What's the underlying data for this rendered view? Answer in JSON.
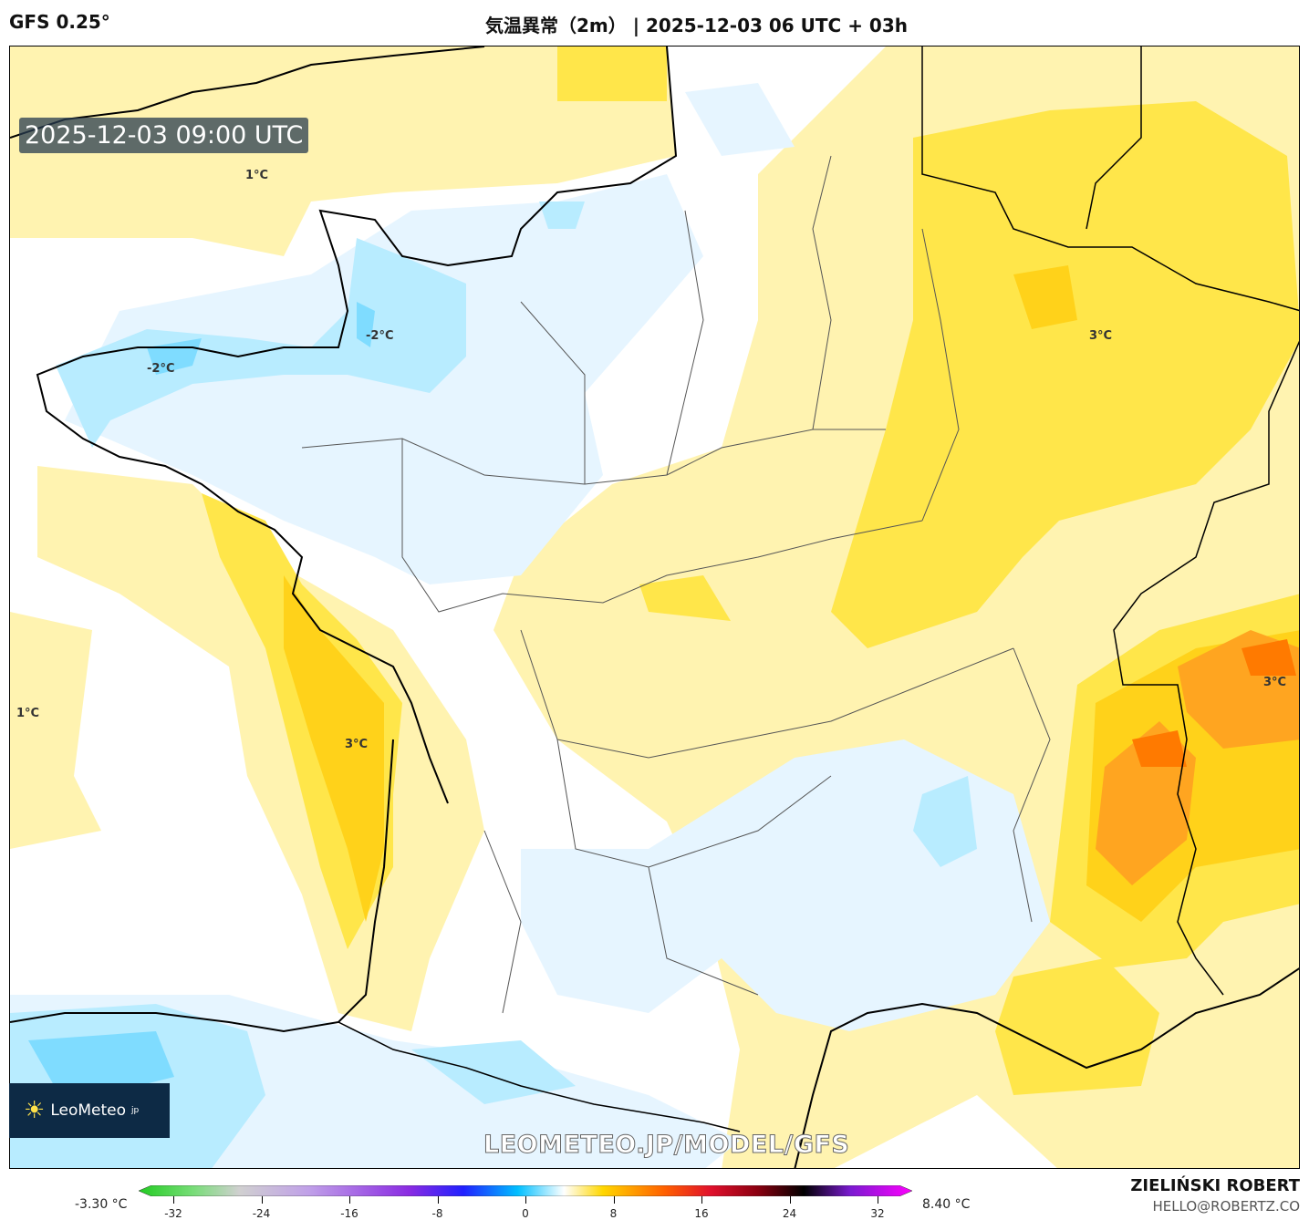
{
  "header": {
    "model": "GFS 0.25°",
    "title": "気温異常（2m） | 2025-12-03 06 UTC + 03h"
  },
  "map": {
    "valid_time": "2025-12-03 09:00 UTC",
    "contour_labels": [
      {
        "text": "1°C"
      },
      {
        "text": "1°C"
      },
      {
        "text": "-2°C"
      },
      {
        "text": "-2°C"
      },
      {
        "text": "3°C"
      },
      {
        "text": "3°C"
      },
      {
        "text": "3°C"
      }
    ],
    "watermark": "LEOMETEO.JP/MODEL/GFS",
    "logo_text": "LeoMeteo",
    "logo_suffix": "jp"
  },
  "colorbar": {
    "min_value": "-3.30 °C",
    "max_value": "8.40 °C",
    "range": [
      -32,
      32
    ],
    "ticks": [
      "-32",
      "-24",
      "-16",
      "-8",
      "0",
      "8",
      "16",
      "24",
      "32"
    ]
  },
  "footer": {
    "author": "ZIELIŃSKI ROBERT",
    "email": "HELLO@ROBERTZ.CO"
  },
  "colors": {
    "pale_yellow": "#fff3b0",
    "yellow": "#ffe64a",
    "gold": "#ffd21a",
    "orange": "#ffa520",
    "deep_orange": "#ff7a00",
    "pale_blue": "#e6f5ff",
    "light_blue": "#b8ecff",
    "blue": "#7fdcff"
  }
}
